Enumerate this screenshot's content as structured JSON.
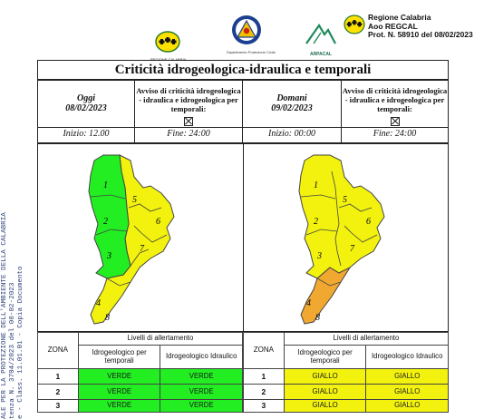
{
  "header": {
    "regione_logo_caption": "REGIONE CALABRIA",
    "protezione_caption": "Dipartimento Protezione Civile",
    "arpacal_name": "ARPACAL",
    "prot_lines": [
      "Regione Calabria",
      "Aoo REGCAL",
      "Prot. N. 58910 del 08/02/2023"
    ]
  },
  "stamp_lines": [
    "ALE PER LA PROTEZIONE DELL'AMBIENTE DELLA CALABRIA",
    "tenza N. 3704/2023 del 08-02-2023",
    "e - Class. 11.01.01 - Copia Documento"
  ],
  "bulletin": {
    "title": "Criticità idrogeologica-idraulica e temporali",
    "days": [
      {
        "name": "Oggi",
        "date": "08/02/2023",
        "avviso": "Avviso di criticità idrogeologica - idraulica e idrogeologica per temporali:",
        "inizio": "Inizio: 12.00",
        "fine": "Fine: 24:00"
      },
      {
        "name": "Domani",
        "date": "09/02/2023",
        "avviso": "Avviso di criticità idrogeologica - idraulica e idrogeologica per temporali:",
        "inizio": "Inizio: 00:00",
        "fine": "Fine: 24:00"
      }
    ],
    "map_zone_labels": [
      "1",
      "2",
      "3",
      "4",
      "5",
      "6",
      "7",
      "8"
    ]
  },
  "colors": {
    "verde": "#22ee22",
    "giallo": "#f2f20e",
    "arancione": "#f0a830"
  },
  "tables": [
    {
      "zona_label": "ZONA",
      "livelli_label": "Livelli di allertamento",
      "col1": "Idrogeologico per temporali",
      "col2": "Idrogeologico Idraulico",
      "rows": [
        {
          "zone": "1",
          "v1": "VERDE",
          "v2": "VERDE"
        },
        {
          "zone": "2",
          "v1": "VERDE",
          "v2": "VERDE"
        },
        {
          "zone": "3",
          "v1": "VERDE",
          "v2": "VERDE"
        }
      ]
    },
    {
      "zona_label": "ZONA",
      "livelli_label": "Livelli di allertamento",
      "col1": "Idrogeologico per temporali",
      "col2": "Idrogeologico Idraulico",
      "rows": [
        {
          "zone": "1",
          "v1": "GIALLO",
          "v2": "GIALLO"
        },
        {
          "zone": "2",
          "v1": "GIALLO",
          "v2": "GIALLO"
        },
        {
          "zone": "3",
          "v1": "GIALLO",
          "v2": "GIALLO"
        }
      ]
    }
  ]
}
